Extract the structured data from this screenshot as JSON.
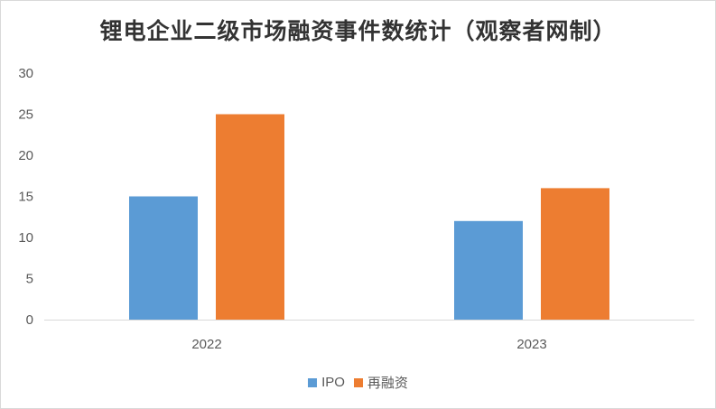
{
  "chart_data": {
    "type": "bar",
    "title": "锂电企业二级市场融资事件数统计（观察者网制）",
    "categories": [
      "2022",
      "2023"
    ],
    "series": [
      {
        "name": "IPO",
        "values": [
          15,
          12
        ],
        "color": "#5B9BD5"
      },
      {
        "name": "再融资",
        "values": [
          25,
          16
        ],
        "color": "#ED7D31"
      }
    ],
    "ylim": [
      0,
      30
    ],
    "yticks": [
      0,
      5,
      10,
      15,
      20,
      25,
      30
    ],
    "xlabel": "",
    "ylabel": "",
    "grid": false,
    "legend": "bottom"
  }
}
